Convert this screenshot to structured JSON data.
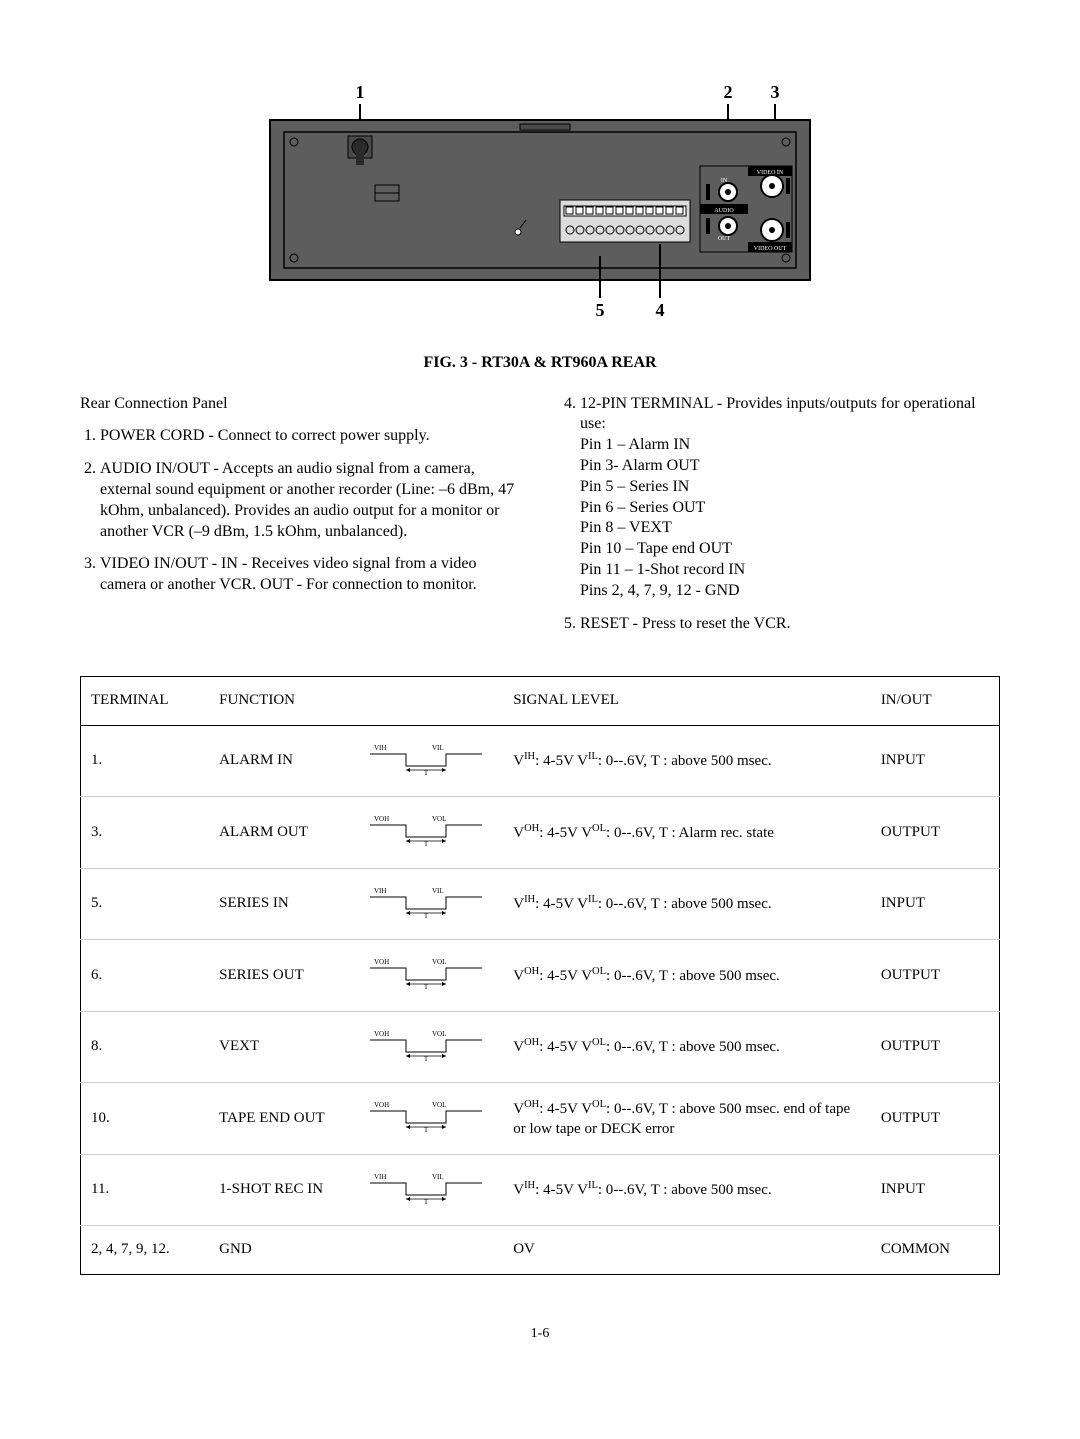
{
  "diagram": {
    "callouts": [
      "1",
      "2",
      "3",
      "5",
      "4"
    ],
    "labels": {
      "video_in": "VIDEO IN",
      "video_out": "VIDEO OUT",
      "audio": "AUDIO",
      "in": "IN",
      "out": "OUT"
    },
    "panel_fill": "#5d5d5d",
    "panel_stroke": "#000000",
    "callout_font_weight": "bold",
    "callout_font_size": 18
  },
  "caption": "FIG. 3 - RT30A & RT960A REAR",
  "left_col": {
    "intro": "Rear Connection Panel",
    "items": [
      "POWER CORD - Connect to correct power supply.",
      "AUDIO IN/OUT - Accepts an audio signal from a camera, external sound equipment or another recorder (Line: –6 dBm, 47 kOhm, unbalanced).  Provides an audio output for a monitor or another VCR (–9 dBm, 1.5 kOhm, unbalanced).",
      "VIDEO IN/OUT - IN - Receives video signal from a video camera or another VCR.  OUT - For connection to monitor."
    ]
  },
  "right_col": {
    "item4_lead": "12-PIN TERMINAL - Provides inputs/outputs for operational use:",
    "pins": [
      "Pin 1 – Alarm IN",
      "Pin 3- Alarm OUT",
      "Pin 5 – Series IN",
      "Pin 6 – Series OUT",
      "Pin 8 – VEXT",
      "Pin 10 – Tape end OUT",
      "Pin 11 – 1-Shot record IN",
      "Pins 2, 4, 7, 9, 12 - GND"
    ],
    "item5": "RESET - Press to reset the VCR."
  },
  "table": {
    "headers": [
      "TERMINAL",
      "FUNCTION",
      "",
      "SIGNAL LEVEL",
      "IN/OUT"
    ],
    "rows": [
      {
        "terminal": "1.",
        "function": "ALARM IN",
        "wave": "IH_IL",
        "signal_html": "V<sup>IH</sup>: 4-5V V<sup>IL</sup>: 0--.6V, T : above 500 msec.",
        "io": "INPUT"
      },
      {
        "terminal": "3.",
        "function": "ALARM OUT",
        "wave": "OH_OL",
        "signal_html": "V<sup>OH</sup>: 4-5V V<sup>OL</sup>: 0--.6V, T : Alarm rec. state",
        "io": "OUTPUT"
      },
      {
        "terminal": "5.",
        "function": "SERIES IN",
        "wave": "IH_IL",
        "signal_html": "V<sup>IH</sup>: 4-5V V<sup>IL</sup>: 0--.6V, T : above 500 msec.",
        "io": "INPUT"
      },
      {
        "terminal": "6.",
        "function": "SERIES OUT",
        "wave": "OH_OL",
        "signal_html": "V<sup>OH</sup>: 4-5V V<sup>OL</sup>: 0--.6V, T : above 500 msec.",
        "io": "OUTPUT"
      },
      {
        "terminal": "8.",
        "function": "VEXT",
        "wave": "OH_OL",
        "signal_html": "V<sup>OH</sup>: 4-5V V<sup>OL</sup>: 0--.6V, T : above 500 msec.",
        "io": "OUTPUT"
      },
      {
        "terminal": "10.",
        "function": "TAPE END OUT",
        "wave": "OH_OL",
        "signal_html": "V<sup>OH</sup>: 4-5V V<sup>OL</sup>: 0--.6V, T : above 500 msec. end of tape or low tape or DECK error",
        "io": "OUTPUT"
      },
      {
        "terminal": "11.",
        "function": "1-SHOT REC IN",
        "wave": "IH_IL",
        "signal_html": "V<sup>IH</sup>: 4-5V V<sup>IL</sup>: 0--.6V, T : above 500 msec.",
        "io": "INPUT"
      },
      {
        "terminal": "2, 4, 7, 9, 12.",
        "function": "GND",
        "wave": "",
        "signal_html": "OV",
        "io": "COMMON"
      }
    ],
    "col_widths": [
      "14%",
      "16%",
      "16%",
      "40%",
      "14%"
    ]
  },
  "page_number": "1-6",
  "waveform": {
    "labels_IH_IL": {
      "high": "VIH",
      "low": "VIL",
      "t": "T"
    },
    "labels_OH_OL": {
      "high": "VOH",
      "low": "VOL",
      "t": "T"
    },
    "stroke": "#000000",
    "font_size": 7
  }
}
